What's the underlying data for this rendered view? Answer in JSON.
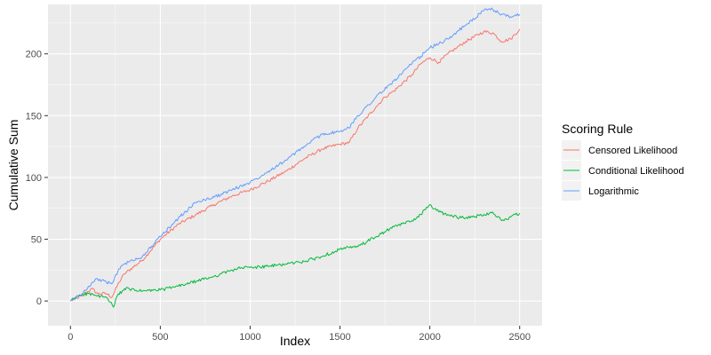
{
  "chart_data": {
    "type": "line",
    "xlabel": "Index",
    "ylabel": "Cumulative Sum",
    "xlim": [
      -125,
      2625
    ],
    "ylim": [
      -20,
      240
    ],
    "x_ticks": [
      0,
      500,
      1000,
      1500,
      2000,
      2500
    ],
    "y_ticks": [
      0,
      50,
      100,
      150,
      200
    ],
    "grid": true,
    "legend": {
      "title": "Scoring Rule",
      "position": "right"
    },
    "series": [
      {
        "name": "Censored Likelihood",
        "color": "#F8766D",
        "points": [
          [
            0,
            0
          ],
          [
            60,
            4
          ],
          [
            120,
            10
          ],
          [
            150,
            6
          ],
          [
            200,
            6
          ],
          [
            230,
            3
          ],
          [
            270,
            15
          ],
          [
            300,
            22
          ],
          [
            400,
            33
          ],
          [
            500,
            50
          ],
          [
            600,
            62
          ],
          [
            700,
            70
          ],
          [
            800,
            78
          ],
          [
            900,
            85
          ],
          [
            1000,
            90
          ],
          [
            1100,
            97
          ],
          [
            1200,
            105
          ],
          [
            1300,
            115
          ],
          [
            1400,
            123
          ],
          [
            1500,
            127
          ],
          [
            1550,
            128
          ],
          [
            1600,
            140
          ],
          [
            1700,
            157
          ],
          [
            1750,
            165
          ],
          [
            1800,
            170
          ],
          [
            1900,
            183
          ],
          [
            1950,
            192
          ],
          [
            2000,
            197
          ],
          [
            2050,
            193
          ],
          [
            2100,
            200
          ],
          [
            2150,
            205
          ],
          [
            2200,
            210
          ],
          [
            2300,
            218
          ],
          [
            2350,
            217
          ],
          [
            2400,
            210
          ],
          [
            2450,
            212
          ],
          [
            2500,
            220
          ]
        ]
      },
      {
        "name": "Conditional Likelihood",
        "color": "#00BA38",
        "points": [
          [
            0,
            0
          ],
          [
            50,
            5
          ],
          [
            100,
            6
          ],
          [
            150,
            4
          ],
          [
            200,
            3
          ],
          [
            220,
            -1
          ],
          [
            240,
            -5
          ],
          [
            260,
            4
          ],
          [
            300,
            10
          ],
          [
            400,
            8
          ],
          [
            500,
            9
          ],
          [
            600,
            12
          ],
          [
            700,
            16
          ],
          [
            800,
            20
          ],
          [
            900,
            25
          ],
          [
            950,
            27
          ],
          [
            1000,
            27
          ],
          [
            1100,
            28
          ],
          [
            1200,
            30
          ],
          [
            1300,
            32
          ],
          [
            1400,
            36
          ],
          [
            1500,
            42
          ],
          [
            1600,
            44
          ],
          [
            1700,
            52
          ],
          [
            1800,
            60
          ],
          [
            1900,
            65
          ],
          [
            1950,
            70
          ],
          [
            2000,
            78
          ],
          [
            2050,
            72
          ],
          [
            2100,
            70
          ],
          [
            2150,
            68
          ],
          [
            2200,
            67
          ],
          [
            2300,
            70
          ],
          [
            2350,
            72
          ],
          [
            2400,
            65
          ],
          [
            2450,
            68
          ],
          [
            2500,
            71
          ]
        ]
      },
      {
        "name": "Logarithmic",
        "color": "#619CFF",
        "points": [
          [
            0,
            0
          ],
          [
            60,
            5
          ],
          [
            100,
            12
          ],
          [
            150,
            18
          ],
          [
            200,
            15
          ],
          [
            230,
            14
          ],
          [
            270,
            26
          ],
          [
            300,
            30
          ],
          [
            400,
            36
          ],
          [
            500,
            52
          ],
          [
            600,
            67
          ],
          [
            700,
            80
          ],
          [
            800,
            84
          ],
          [
            900,
            90
          ],
          [
            1000,
            96
          ],
          [
            1100,
            105
          ],
          [
            1200,
            114
          ],
          [
            1300,
            125
          ],
          [
            1400,
            135
          ],
          [
            1500,
            137
          ],
          [
            1550,
            140
          ],
          [
            1600,
            150
          ],
          [
            1700,
            165
          ],
          [
            1800,
            178
          ],
          [
            1900,
            192
          ],
          [
            1950,
            198
          ],
          [
            2000,
            205
          ],
          [
            2050,
            208
          ],
          [
            2100,
            212
          ],
          [
            2150,
            218
          ],
          [
            2200,
            223
          ],
          [
            2300,
            235
          ],
          [
            2350,
            236
          ],
          [
            2400,
            232
          ],
          [
            2450,
            230
          ],
          [
            2500,
            232
          ]
        ]
      }
    ]
  }
}
